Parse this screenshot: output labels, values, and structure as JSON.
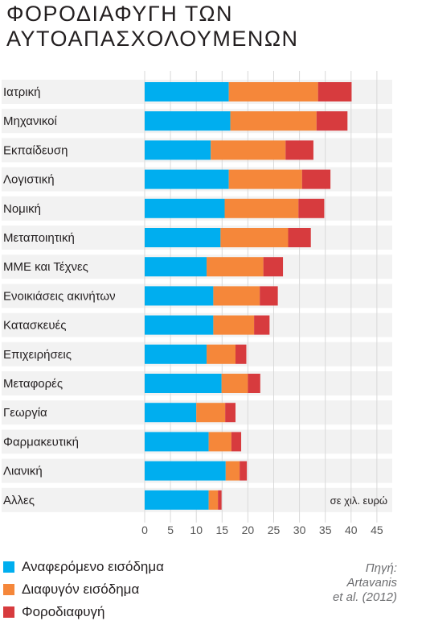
{
  "title_lines": [
    "ΦΟΡΟΔΙΑΦΥΓΗ ΤΩΝ",
    "ΑΥΤΟΑΠΑΣΧΟΛΟΥΜΕΝΩΝ"
  ],
  "unit_note": "σε χιλ. ευρώ",
  "source": [
    "Πηγή:",
    "Artavanis",
    "et al. (2012)"
  ],
  "colors": {
    "reported": "#00aeef",
    "evaded": "#f5873a",
    "tax_evasion": "#d73b3e",
    "band": "#f2f2f2",
    "grid": "#d9d9d9"
  },
  "chart_data": {
    "type": "bar",
    "orientation": "horizontal",
    "stacked": true,
    "categories": [
      "Ιατρική",
      "Μηχανικοί",
      "Εκπαίδευση",
      "Λογιστική",
      "Νομική",
      "Μεταποιητική",
      "ΜΜΕ και Τέχνες",
      "Ενοικιάσεις ακινήτων",
      "Κατασκευές",
      "Επιχειρήσεις",
      "Μεταφορές",
      "Γεωργία",
      "Φαρμακευτική",
      "Λιανική",
      "Αλλες"
    ],
    "series": [
      {
        "name": "Αναφερόμενο εισόδημα",
        "values": [
          16.3,
          16.6,
          12.8,
          16.3,
          15.5,
          14.7,
          12.0,
          13.3,
          13.3,
          12.0,
          14.9,
          10.0,
          12.4,
          15.7,
          12.4
        ]
      },
      {
        "name": "Διαφυγόν εισόδημα",
        "values": [
          17.3,
          16.7,
          14.5,
          14.2,
          14.3,
          13.1,
          11.0,
          9.0,
          7.9,
          5.6,
          5.1,
          5.6,
          4.4,
          2.7,
          1.8
        ]
      },
      {
        "name": "Φοροδιαφυγή",
        "values": [
          6.5,
          6.0,
          5.4,
          5.5,
          5.0,
          4.4,
          3.8,
          3.5,
          3.0,
          2.1,
          2.4,
          2.0,
          1.9,
          1.4,
          0.7
        ]
      }
    ],
    "xlim": [
      0,
      47
    ],
    "xticks": [
      0,
      5,
      10,
      15,
      20,
      25,
      30,
      35,
      40,
      45
    ],
    "xtick_labels": [
      "0",
      "5",
      "10",
      "15",
      "20",
      "25",
      "30",
      "35",
      "40",
      "45"
    ],
    "grid": true,
    "legend_position": "bottom-left"
  }
}
